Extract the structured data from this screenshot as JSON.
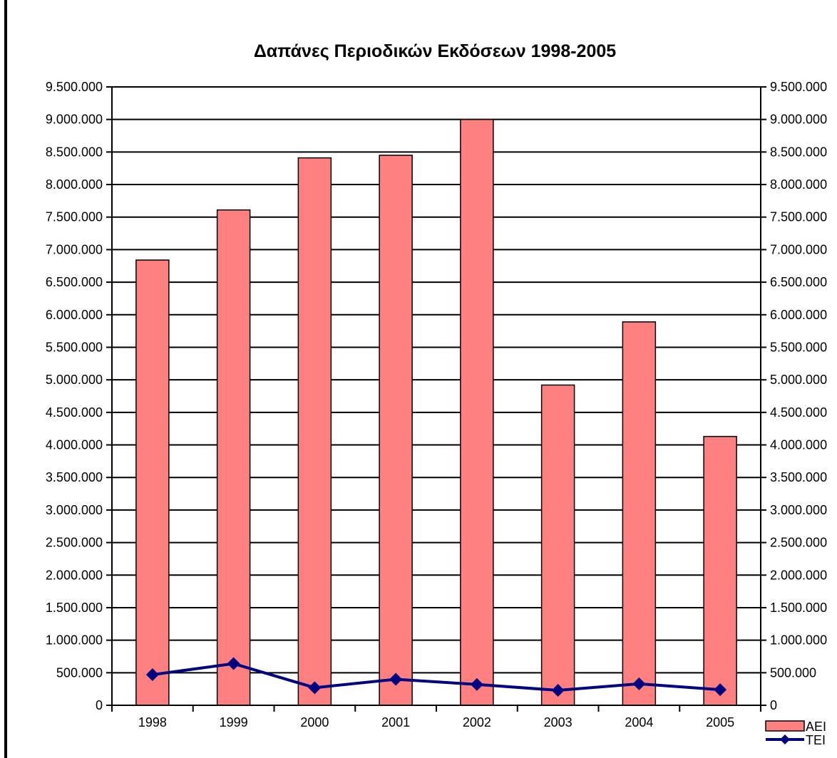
{
  "chart_data": {
    "type": "bar",
    "title": "Δαπάνες Περιοδικών Εκδόσεων 1998-2005",
    "xlabel": "",
    "ylabel": "",
    "categories": [
      "1998",
      "1999",
      "2000",
      "2001",
      "2002",
      "2003",
      "2004",
      "2005"
    ],
    "series": [
      {
        "name": "AEI",
        "type": "bar",
        "color": "#FF8080",
        "values": [
          6840000,
          7610000,
          8410000,
          8450000,
          9000000,
          4920000,
          5890000,
          4130000
        ]
      },
      {
        "name": "TEI",
        "type": "line",
        "color": "#000080",
        "marker": "diamond",
        "values": [
          470000,
          640000,
          270000,
          400000,
          320000,
          230000,
          330000,
          240000
        ]
      }
    ],
    "ylim": [
      0,
      9500000
    ],
    "ytick_labels": [
      "0",
      "500.000",
      "1.000.000",
      "1.500.000",
      "2.000.000",
      "2.500.000",
      "3.000.000",
      "3.500.000",
      "4.000.000",
      "4.500.000",
      "5.000.000",
      "5.500.000",
      "6.000.000",
      "6.500.000",
      "7.000.000",
      "7.500.000",
      "8.000.000",
      "8.500.000",
      "9.000.000",
      "9.500.000"
    ],
    "secondary_axis": true,
    "grid": true,
    "legend": "bottom-right"
  }
}
